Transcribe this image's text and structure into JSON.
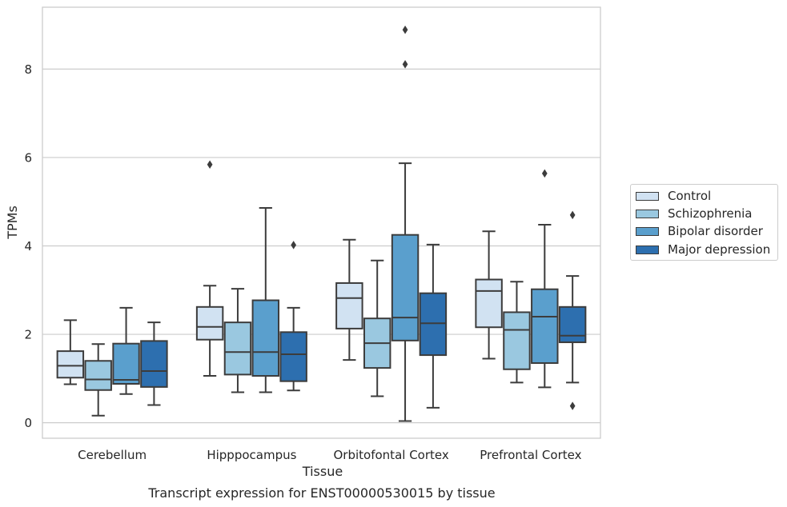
{
  "chart_data": {
    "type": "box",
    "title": "Transcript expression for ENST00000530015 by tissue",
    "xlabel": "Tissue",
    "ylabel": "TPMs",
    "ylim": [
      -0.35,
      9.4
    ],
    "yticks": [
      0,
      2,
      4,
      6,
      8
    ],
    "grid": true,
    "legend_position": "right",
    "categories": [
      "Cerebellum",
      "Hipppocampus",
      "Orbitofontal Cortex",
      "Prefrontal Cortex"
    ],
    "series": [
      {
        "name": "Control",
        "color": "#d1e2f2",
        "boxes": [
          {
            "whislo": 0.87,
            "q1": 1.02,
            "med": 1.29,
            "q3": 1.62,
            "whishi": 2.32,
            "fliers": []
          },
          {
            "whislo": 1.06,
            "q1": 1.88,
            "med": 2.17,
            "q3": 2.62,
            "whishi": 3.1,
            "fliers": [
              5.84
            ]
          },
          {
            "whislo": 1.42,
            "q1": 2.13,
            "med": 2.82,
            "q3": 3.16,
            "whishi": 4.14,
            "fliers": []
          },
          {
            "whislo": 1.45,
            "q1": 2.16,
            "med": 2.98,
            "q3": 3.24,
            "whishi": 4.33,
            "fliers": []
          }
        ]
      },
      {
        "name": "Schizophrenia",
        "color": "#9ac8e0",
        "boxes": [
          {
            "whislo": 0.16,
            "q1": 0.74,
            "med": 0.98,
            "q3": 1.4,
            "whishi": 1.78,
            "fliers": []
          },
          {
            "whislo": 0.69,
            "q1": 1.09,
            "med": 1.6,
            "q3": 2.27,
            "whishi": 3.03,
            "fliers": []
          },
          {
            "whislo": 0.6,
            "q1": 1.24,
            "med": 1.8,
            "q3": 2.36,
            "whishi": 3.67,
            "fliers": []
          },
          {
            "whislo": 0.91,
            "q1": 1.21,
            "med": 2.1,
            "q3": 2.5,
            "whishi": 3.19,
            "fliers": []
          }
        ]
      },
      {
        "name": "Bipolar disorder",
        "color": "#5a9fcd",
        "boxes": [
          {
            "whislo": 0.65,
            "q1": 0.88,
            "med": 0.97,
            "q3": 1.79,
            "whishi": 2.6,
            "fliers": []
          },
          {
            "whislo": 0.69,
            "q1": 1.06,
            "med": 1.6,
            "q3": 2.77,
            "whishi": 4.86,
            "fliers": []
          },
          {
            "whislo": 0.04,
            "q1": 1.86,
            "med": 2.38,
            "q3": 4.25,
            "whishi": 5.87,
            "fliers": [
              8.11,
              8.89
            ]
          },
          {
            "whislo": 0.8,
            "q1": 1.35,
            "med": 2.4,
            "q3": 3.02,
            "whishi": 4.48,
            "fliers": [
              5.64
            ]
          }
        ]
      },
      {
        "name": "Major depression",
        "color": "#2d6faf",
        "boxes": [
          {
            "whislo": 0.4,
            "q1": 0.81,
            "med": 1.17,
            "q3": 1.85,
            "whishi": 2.27,
            "fliers": []
          },
          {
            "whislo": 0.73,
            "q1": 0.94,
            "med": 1.55,
            "q3": 2.05,
            "whishi": 2.6,
            "fliers": [
              4.02
            ]
          },
          {
            "whislo": 0.34,
            "q1": 1.53,
            "med": 2.25,
            "q3": 2.93,
            "whishi": 4.03,
            "fliers": []
          },
          {
            "whislo": 0.91,
            "q1": 1.82,
            "med": 1.97,
            "q3": 2.62,
            "whishi": 3.32,
            "fliers": [
              0.38,
              4.7
            ]
          }
        ]
      }
    ]
  }
}
